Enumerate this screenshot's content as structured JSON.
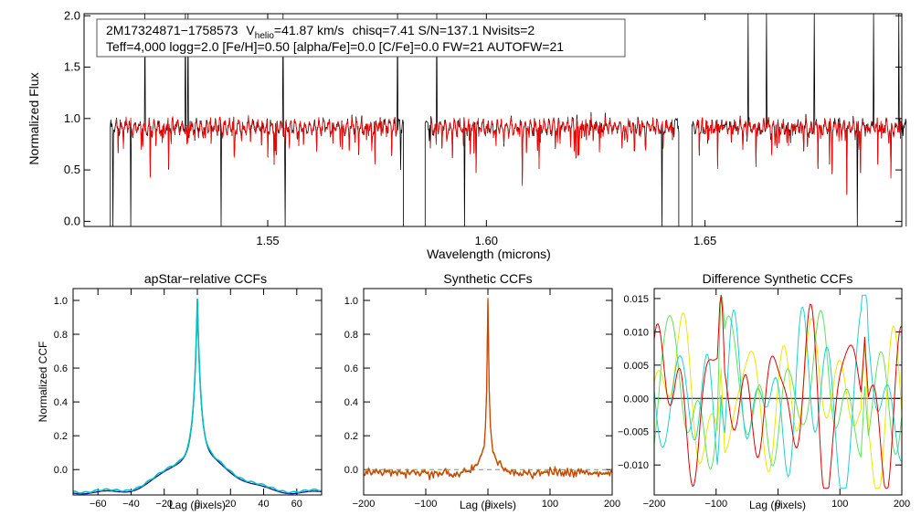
{
  "colors": {
    "observed": "#000000",
    "model": "#ff0000",
    "ccf_data": "#000090",
    "ccf_model": "#00c0c0",
    "syn_a": "#d04000",
    "syn_b": "#b08000",
    "diff_yellow": "#e8e800",
    "diff_green": "#60e060",
    "diff_cyan": "#20d0d0",
    "diff_red": "#e00000"
  },
  "chart_data": [
    {
      "id": "spectrum",
      "type": "line",
      "title": "",
      "xlabel": "Wavelength (microns)",
      "ylabel": "Normalized Flux",
      "xlim": [
        1.508,
        1.695
      ],
      "ylim": [
        -0.05,
        2.02
      ],
      "xticks": [
        "1.55",
        "1.60",
        "1.65"
      ],
      "xtick_values": [
        1.55,
        1.6,
        1.65
      ],
      "yticks": [
        "0.0",
        "0.5",
        "1.0",
        "1.5",
        "2.0"
      ],
      "ytick_values": [
        0.0,
        0.5,
        1.0,
        1.5,
        2.0
      ],
      "chips": [
        [
          1.514,
          1.581
        ],
        [
          1.586,
          1.644
        ],
        [
          1.647,
          1.696
        ]
      ],
      "continuum": 0.92,
      "series": [
        {
          "name": "observed",
          "color_key": "observed"
        },
        {
          "name": "best-fit model",
          "color_key": "model"
        }
      ],
      "info_box": {
        "object": "2M17324871−1758573",
        "v_label": "V",
        "v_sub": "helio",
        "v_value": "=41.87 km/s",
        "rest_line1": "chisq=7.41  S/N=137.1  Nvisits=2",
        "line2": "Teff=4,000 logg=2.0 [Fe/H]=0.50 [alpha/Fe]=0.0 [C/Fe]=0.0 FW=21 AUTOFW=21"
      }
    },
    {
      "id": "apstar_ccf",
      "type": "line",
      "title": "apStar−relative CCFs",
      "xlabel": "Lag (pixels)",
      "ylabel": "Normalized CCF",
      "xlim": [
        -75,
        75
      ],
      "ylim": [
        -0.15,
        1.07
      ],
      "xticks": [
        "−60",
        "−40",
        "−20",
        "0",
        "20",
        "40",
        "60"
      ],
      "xtick_values": [
        -60,
        -40,
        -20,
        0,
        20,
        40,
        60
      ],
      "yticks": [
        "0.0",
        "0.2",
        "0.4",
        "0.6",
        "0.8",
        "1.0"
      ],
      "ytick_values": [
        0.0,
        0.2,
        0.4,
        0.6,
        0.8,
        1.0
      ],
      "peak": 1.0,
      "peak_lag": 0
    },
    {
      "id": "synthetic_ccf",
      "type": "line",
      "title": "Synthetic CCFs",
      "xlabel": "Lag (pixels)",
      "ylabel": "",
      "xlim": [
        -200,
        200
      ],
      "ylim": [
        -0.15,
        1.07
      ],
      "xticks": [
        "−200",
        "−100",
        "0",
        "100",
        "200"
      ],
      "xtick_values": [
        -200,
        -100,
        0,
        100,
        200
      ],
      "yticks": [
        "0.0",
        "0.2",
        "0.4",
        "0.6",
        "0.8",
        "1.0"
      ],
      "ytick_values": [
        0.0,
        0.2,
        0.4,
        0.6,
        0.8,
        1.0
      ],
      "peak": 1.0,
      "peak_lag": 0
    },
    {
      "id": "difference_ccf",
      "type": "line",
      "title": "Difference Synthetic CCFs",
      "xlabel": "Lag (pixels)",
      "ylabel": "",
      "xlim": [
        -200,
        200
      ],
      "ylim": [
        -0.0145,
        0.0165
      ],
      "xticks": [
        "−200",
        "−100",
        "0",
        "100",
        "200"
      ],
      "xtick_values": [
        -200,
        -100,
        0,
        100,
        200
      ],
      "yticks": [
        "−0.010",
        "−0.005",
        "0.000",
        "0.005",
        "0.010",
        "0.015"
      ],
      "ytick_values": [
        -0.01,
        -0.005,
        0.0,
        0.005,
        0.01,
        0.015
      ],
      "series": [
        {
          "name": "yellow",
          "color_key": "diff_yellow"
        },
        {
          "name": "green",
          "color_key": "diff_green"
        },
        {
          "name": "cyan",
          "color_key": "diff_cyan"
        },
        {
          "name": "red",
          "color_key": "diff_red"
        }
      ]
    }
  ]
}
